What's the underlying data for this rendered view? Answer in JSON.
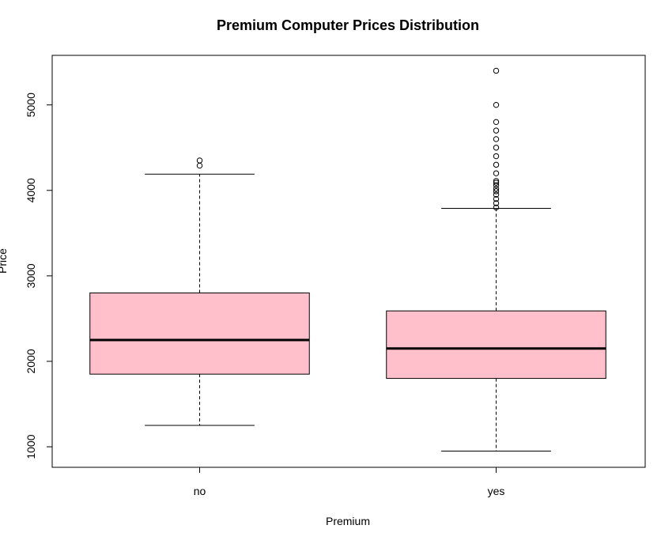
{
  "chart_data": {
    "type": "boxplot",
    "title": "Premium Computer Prices Distribution",
    "xlabel": "Premium",
    "ylabel": "Price",
    "categories": [
      "no",
      "yes"
    ],
    "yticks": [
      1000,
      2000,
      3000,
      4000,
      5000
    ],
    "ylim": [
      760,
      5580
    ],
    "box_fill": "#ffc0cb",
    "grid": false,
    "boxes": [
      {
        "category": "no",
        "whisker_low": 1250,
        "q1": 1850,
        "median": 2250,
        "q3": 2800,
        "whisker_high": 4190,
        "outliers": [
          4290,
          4350
        ]
      },
      {
        "category": "yes",
        "whisker_low": 950,
        "q1": 1800,
        "median": 2150,
        "q3": 2590,
        "whisker_high": 3790,
        "outliers": [
          3800,
          3850,
          3900,
          3950,
          3990,
          4020,
          4060,
          4090,
          4110,
          4200,
          4300,
          4400,
          4500,
          4600,
          4700,
          4800,
          5000,
          5400
        ]
      }
    ]
  }
}
